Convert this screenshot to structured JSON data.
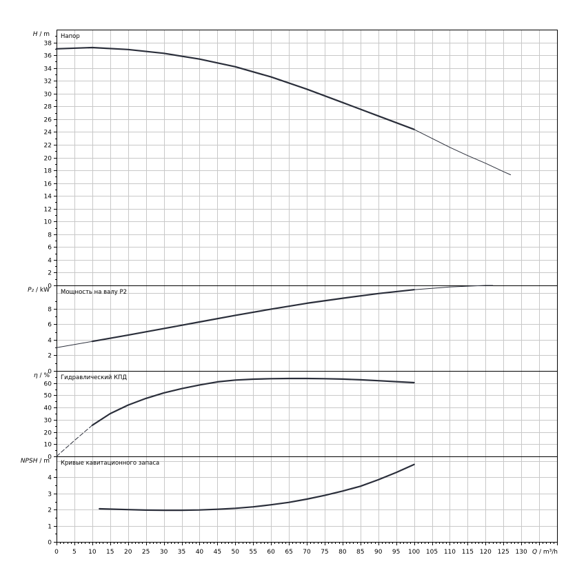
{
  "chart_data": {
    "type": "line",
    "x_axis": {
      "label": "Q / m³/h",
      "range": [
        0,
        140
      ],
      "ticks": [
        0,
        5,
        10,
        15,
        20,
        25,
        30,
        35,
        40,
        45,
        50,
        55,
        60,
        65,
        70,
        75,
        80,
        85,
        90,
        95,
        100,
        105,
        110,
        115,
        120,
        125,
        130
      ]
    },
    "panels": [
      {
        "id": "head",
        "title": "Напор",
        "ylabel": "H / m",
        "ylim": [
          0,
          40
        ],
        "yticks": [
          0,
          2,
          4,
          6,
          8,
          10,
          12,
          14,
          16,
          18,
          20,
          22,
          24,
          26,
          28,
          30,
          32,
          34,
          36,
          38
        ],
        "series": [
          {
            "x": [
              0,
              10,
              20,
              30,
              40,
              50,
              60,
              70,
              80,
              90,
              100
            ],
            "y": [
              37.0,
              37.2,
              36.9,
              36.3,
              35.4,
              34.2,
              32.6,
              30.7,
              28.6,
              26.5,
              24.4
            ],
            "width": "thick"
          },
          {
            "x": [
              100,
              105,
              110,
              115,
              120,
              125,
              127
            ],
            "y": [
              24.4,
              23.0,
              21.6,
              20.3,
              19.1,
              17.8,
              17.3
            ],
            "width": "thin"
          }
        ]
      },
      {
        "id": "power",
        "title": "Мощность на валу P2",
        "ylabel": "P₂ / kW",
        "ylim": [
          0,
          11
        ],
        "yticks": [
          0,
          2,
          4,
          6,
          8
        ],
        "series": [
          {
            "x": [
              0,
              10
            ],
            "y": [
              3.0,
              3.8
            ],
            "width": "thin"
          },
          {
            "x": [
              10,
              20,
              30,
              40,
              50,
              60,
              70,
              80,
              90,
              100
            ],
            "y": [
              3.8,
              4.6,
              5.45,
              6.3,
              7.15,
              7.95,
              8.7,
              9.35,
              9.95,
              10.45
            ],
            "width": "thick"
          },
          {
            "x": [
              100,
              110,
              120,
              122
            ],
            "y": [
              10.45,
              10.8,
              11.0,
              11.0
            ],
            "width": "thin"
          }
        ]
      },
      {
        "id": "efficiency",
        "title": "Гидравлический КПД",
        "ylabel": "η / %",
        "ylim": [
          0,
          70
        ],
        "yticks": [
          0,
          10,
          20,
          30,
          40,
          50,
          60
        ],
        "series": [
          {
            "x": [
              0,
              5,
              10
            ],
            "y": [
              0,
              13,
              25.5
            ],
            "width": "thin",
            "dashed": true
          },
          {
            "x": [
              10,
              15,
              20,
              25,
              30,
              35,
              40,
              45,
              50,
              55,
              60,
              65,
              70,
              75,
              80,
              85,
              90,
              95,
              100
            ],
            "y": [
              25.5,
              35,
              42,
              47.5,
              52,
              55.5,
              58.5,
              61,
              62.5,
              63.2,
              63.6,
              63.8,
              63.8,
              63.6,
              63.3,
              62.7,
              62,
              61.2,
              60.4
            ],
            "width": "thick"
          }
        ]
      },
      {
        "id": "npsh",
        "title": "Кривые кавитационного запаса",
        "ylabel": "NPSH / m",
        "ylim": [
          0,
          5.3
        ],
        "yticks": [
          0,
          1,
          2,
          3,
          4
        ],
        "series": [
          {
            "x": [
              12,
              20,
              25,
              30,
              35,
              40,
              45,
              50,
              55,
              60,
              65,
              70,
              75,
              80,
              85,
              90,
              95,
              100
            ],
            "y": [
              2.05,
              2.0,
              1.97,
              1.96,
              1.96,
              1.98,
              2.02,
              2.08,
              2.17,
              2.3,
              2.45,
              2.65,
              2.88,
              3.15,
              3.45,
              3.85,
              4.3,
              4.8
            ],
            "width": "thick"
          }
        ]
      }
    ],
    "grid": true
  }
}
